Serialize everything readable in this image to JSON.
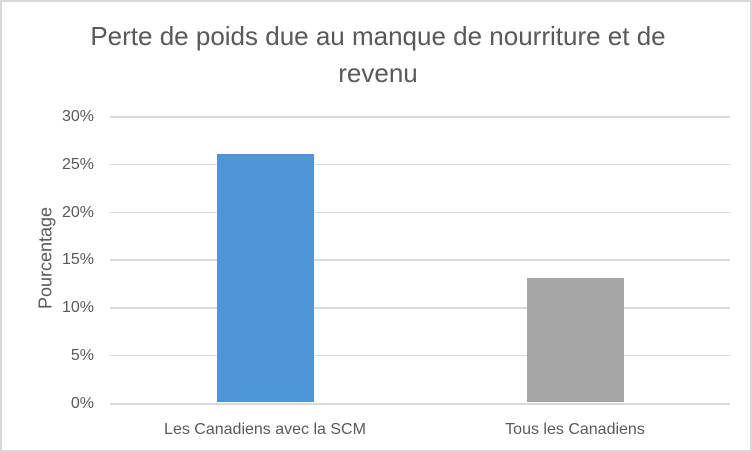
{
  "chart_data": {
    "type": "bar",
    "title": "Perte de poids due au manque de nourriture et de revenu",
    "categories": [
      "Les Canadiens avec la SCM",
      "Tous les Canadiens"
    ],
    "values": [
      26,
      13
    ],
    "bar_colors": [
      "#4E94D9",
      "#A6A6A6"
    ],
    "ylabel": "Pourcentage",
    "xlabel": "",
    "ylim": [
      0,
      30
    ],
    "yticks": [
      0,
      5,
      10,
      15,
      20,
      25,
      30
    ],
    "ytick_labels": [
      "0%",
      "5%",
      "10%",
      "15%",
      "20%",
      "25%",
      "30%"
    ],
    "grid": true,
    "legend": false
  },
  "colors": {
    "text": "#595959",
    "gridline": "#D9D9D9",
    "border": "#D9D9D9",
    "background": "#FFFFFF"
  }
}
